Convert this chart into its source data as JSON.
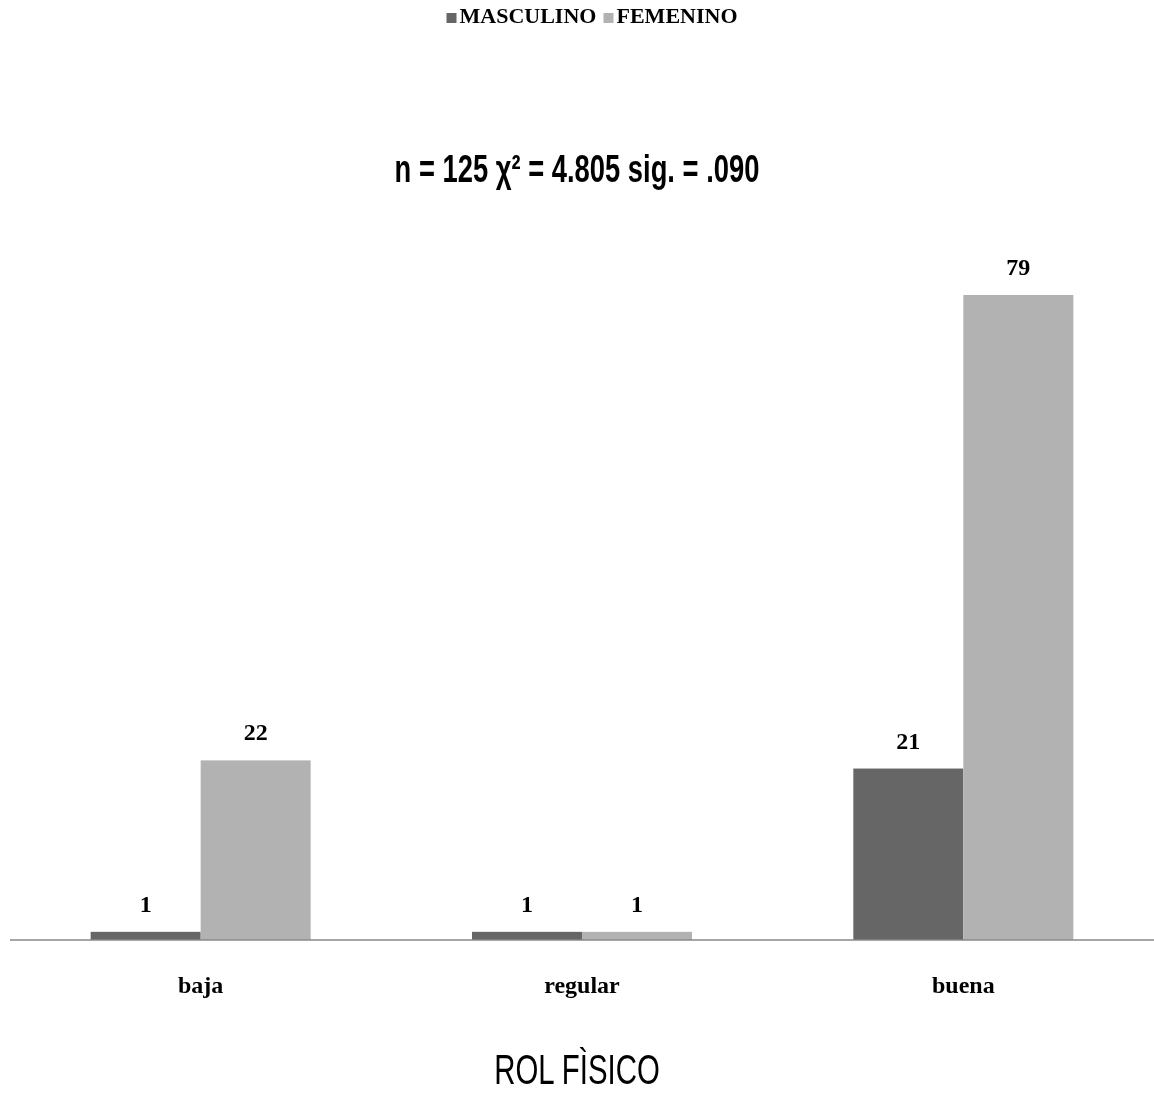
{
  "chart_data": {
    "type": "bar",
    "title": "n = 125 χ² = 4.805 sig. = .090",
    "xlabel": "ROL FÌSICO",
    "categories": [
      "baja",
      "regular",
      "buena"
    ],
    "series": [
      {
        "name": "MASCULINO",
        "color": "#666666",
        "values": [
          1,
          1,
          21
        ]
      },
      {
        "name": "FEMENINO",
        "color": "#b2b2b2",
        "values": [
          22,
          1,
          79
        ]
      }
    ],
    "data_labels": true,
    "legend": "top"
  }
}
